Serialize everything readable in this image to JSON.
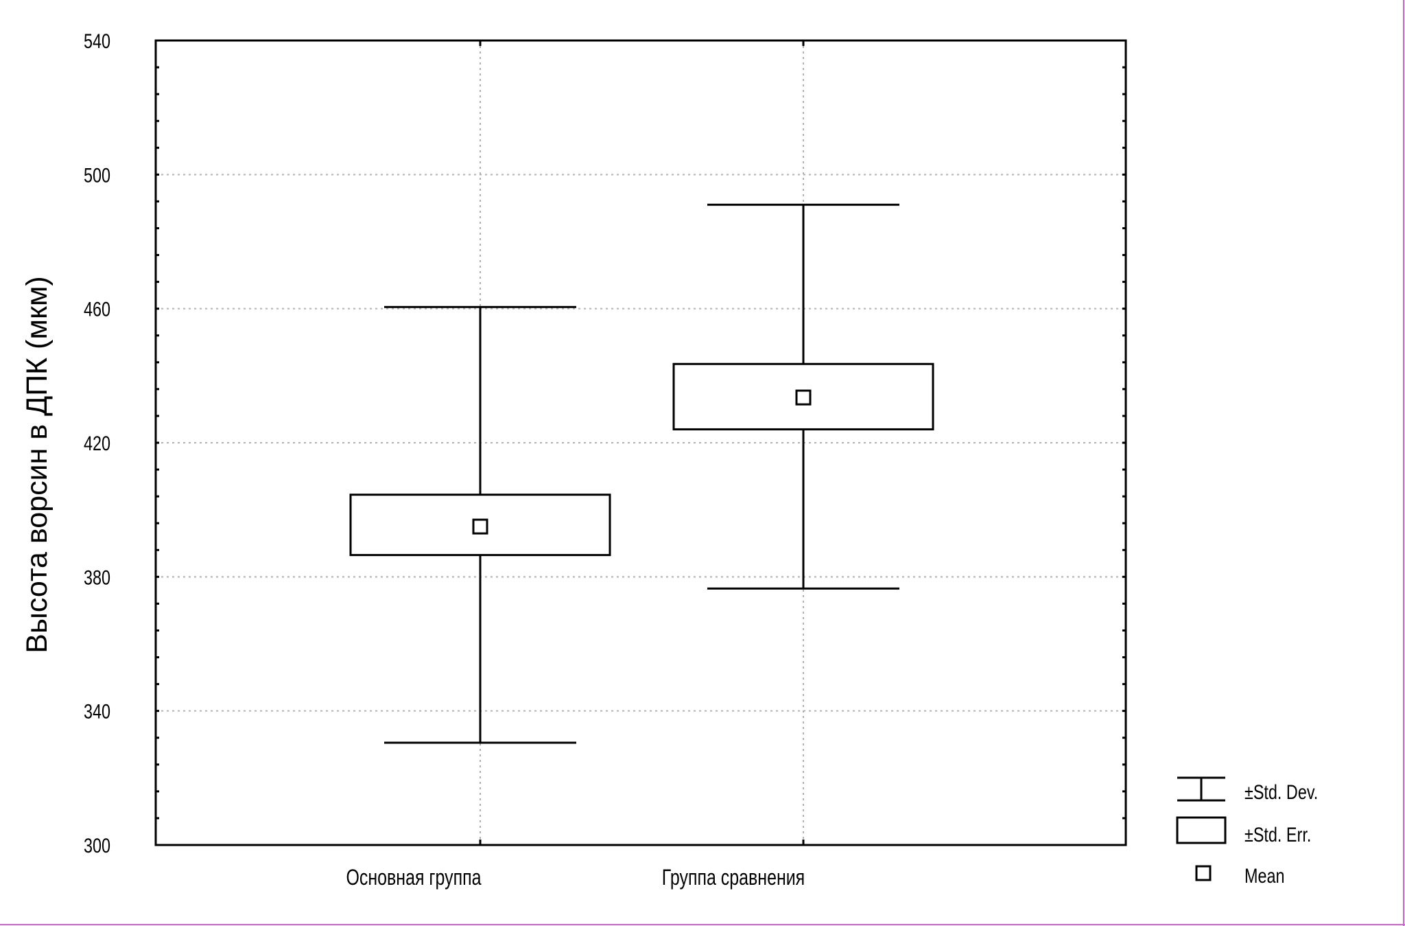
{
  "chart_data": {
    "type": "box",
    "ylabel": "Высота ворсин в ДПК (мкм)",
    "xlabel": "",
    "ylim": [
      300,
      540
    ],
    "yticks": [
      300,
      340,
      380,
      420,
      460,
      500,
      540
    ],
    "ytick_labels": [
      "300",
      "340",
      "380",
      "420",
      "460",
      "500",
      "540"
    ],
    "minor_ticks_per_major": 5,
    "grid": true,
    "categories": [
      "Основная группа",
      "Группа сравнения"
    ],
    "series": [
      {
        "category": "Основная группа",
        "mean": 395,
        "std_err_low": 386.5,
        "std_err_high": 404.5,
        "std_dev_low": 330.5,
        "std_dev_high": 460.5
      },
      {
        "category": "Группа сравнения",
        "mean": 433.5,
        "std_err_low": 424,
        "std_err_high": 443.5,
        "std_dev_low": 376.5,
        "std_dev_high": 491
      }
    ],
    "legend": {
      "position": "bottom-right",
      "items": [
        {
          "symbol": "whisker",
          "label": "±Std. Dev."
        },
        {
          "symbol": "box",
          "label": "±Std. Err."
        },
        {
          "symbol": "square",
          "label": "Mean"
        }
      ]
    },
    "colors": {
      "line": "#000000",
      "grid": "#b0b0b0",
      "background": "#ffffff",
      "border_accent": "#cc66cc"
    }
  }
}
